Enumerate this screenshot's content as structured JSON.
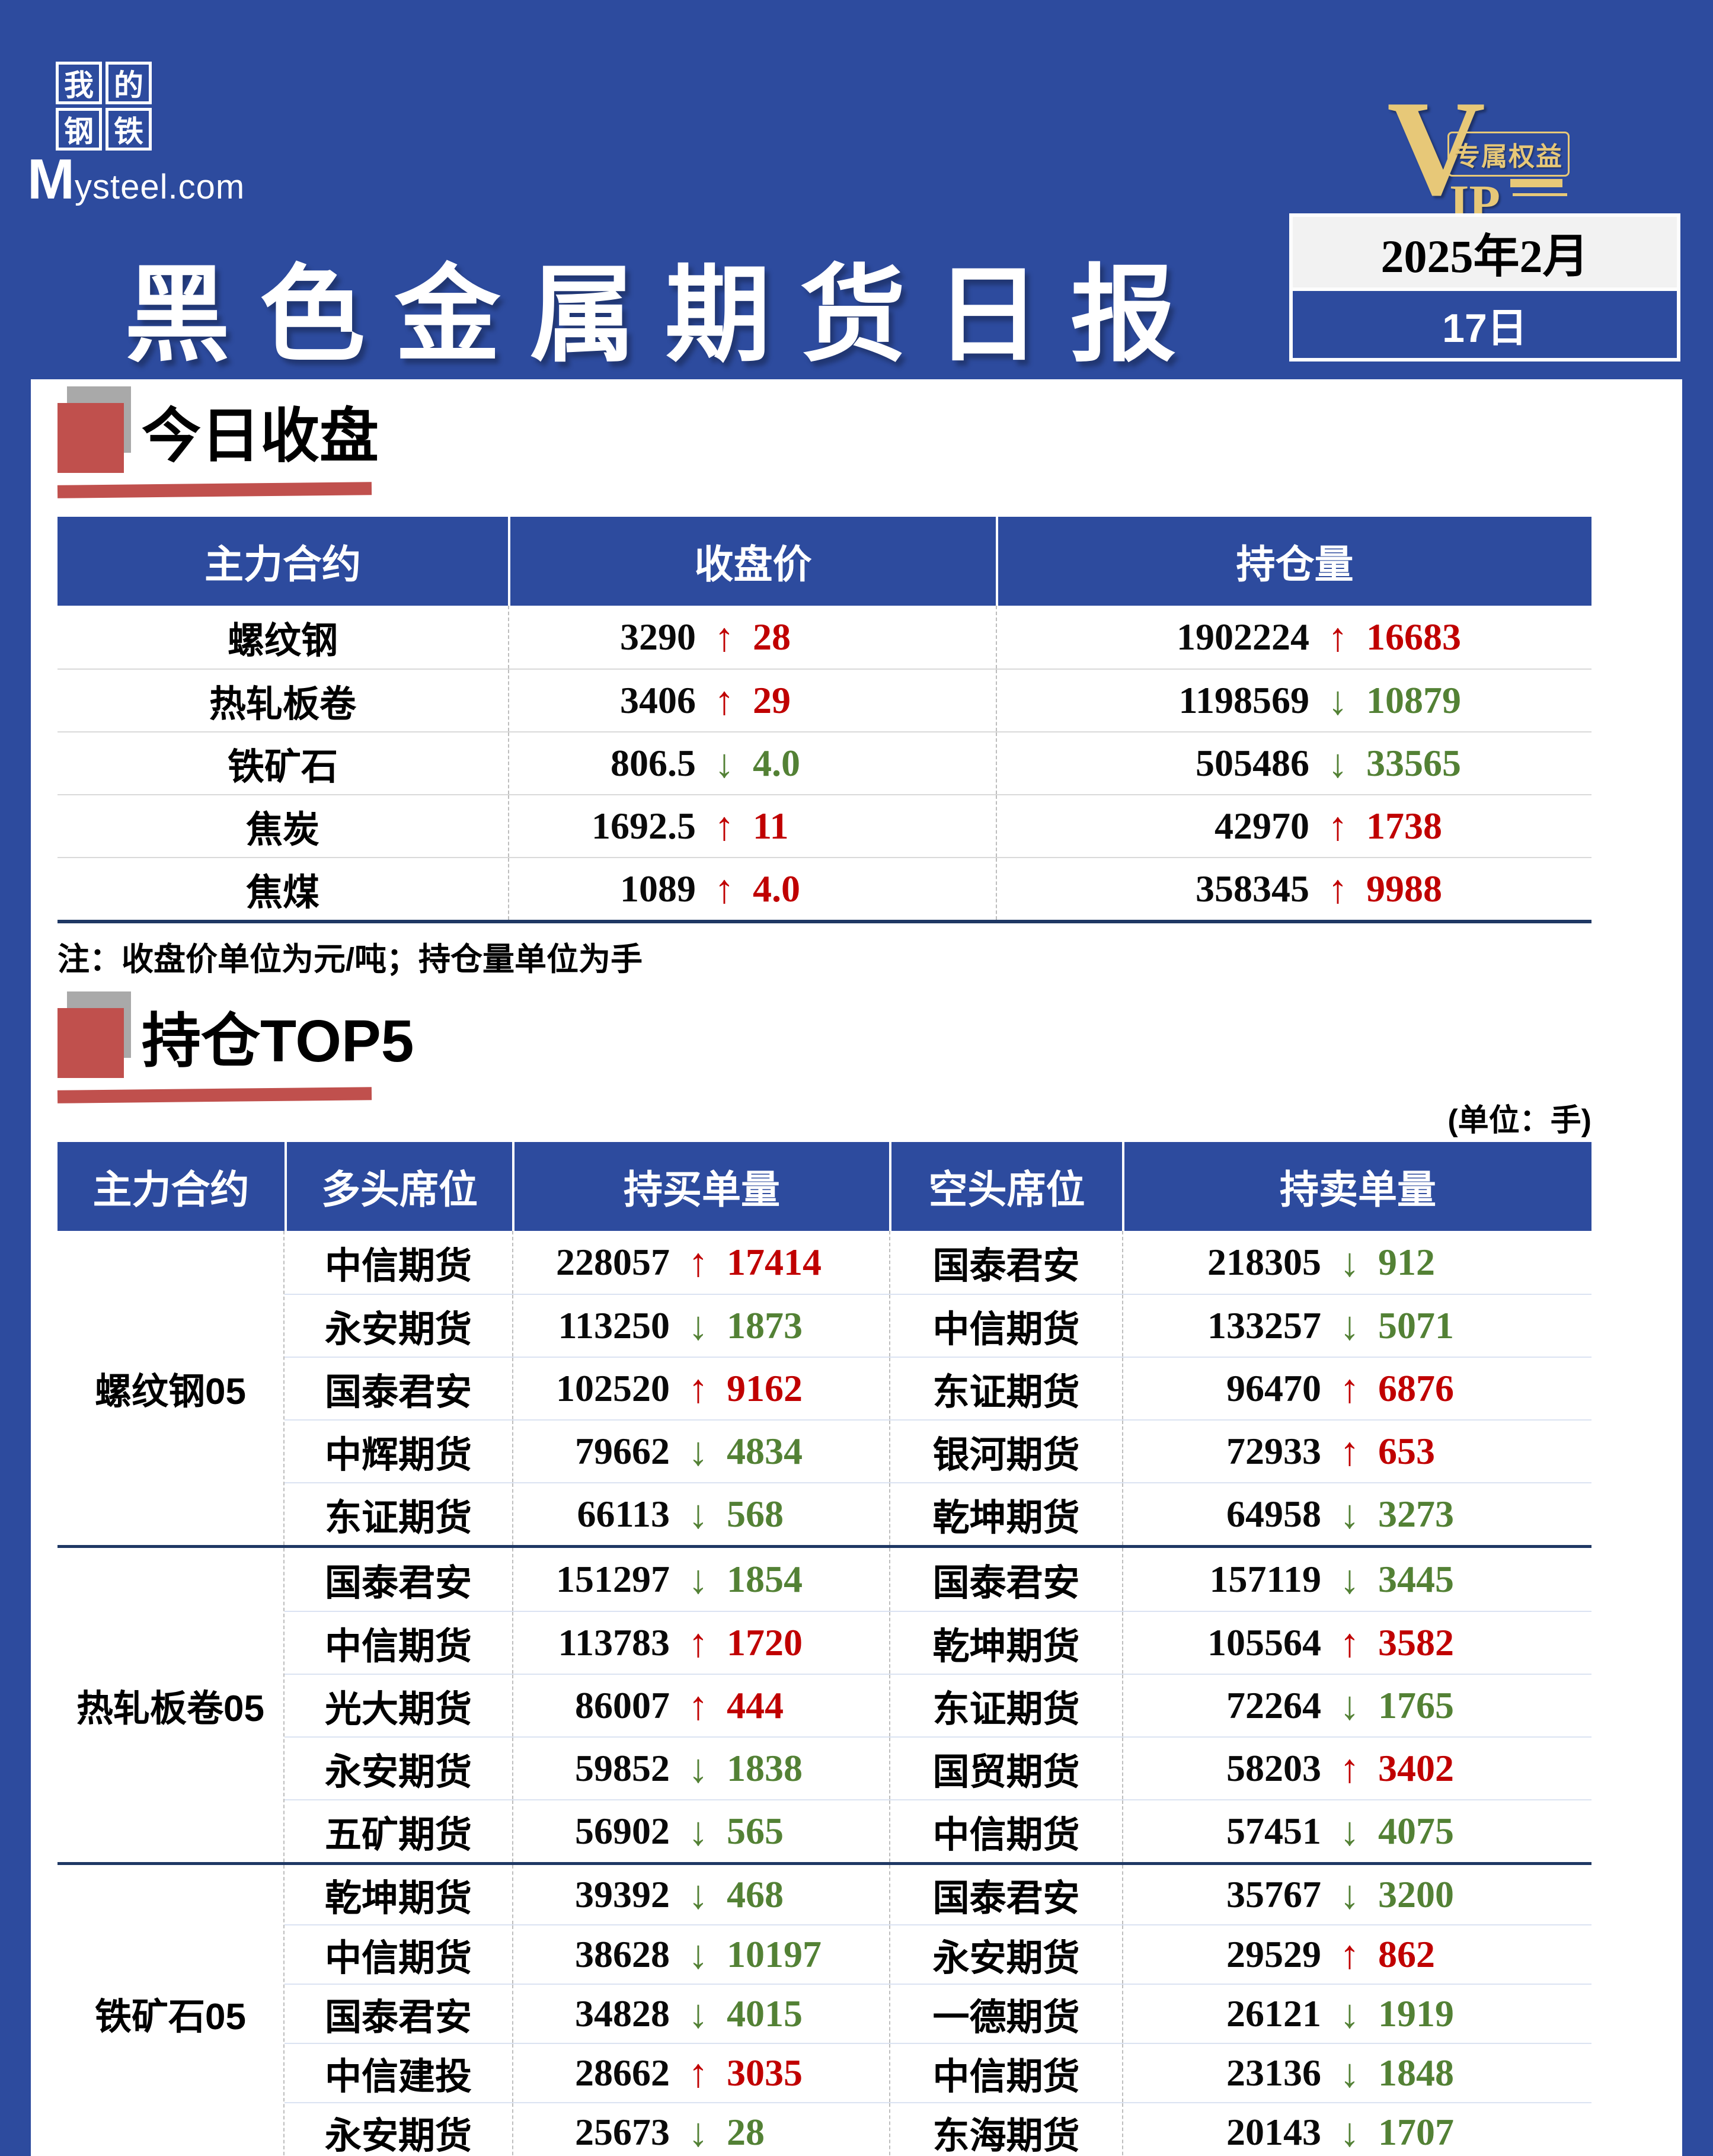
{
  "header": {
    "logo": {
      "chars": [
        "我",
        "的",
        "钢",
        "铁"
      ],
      "wordmark_m": "M",
      "wordmark_rest": "ysteel.com"
    },
    "title": "黑色金属期货日报",
    "vip": {
      "v": "V",
      "ip": "IP",
      "badge": "专属权益"
    },
    "date": {
      "line1": "2025年2月",
      "line2": "17日"
    }
  },
  "icons": {
    "up": "↑",
    "down": "↓"
  },
  "colors": {
    "page_blue": "#2d4b9e",
    "accent_red": "#c0504d",
    "navy_rule": "#1f3864",
    "up_red": "#c00000",
    "down_green": "#538135",
    "gold": "#e7c878"
  },
  "section_close": {
    "title": "今日收盘",
    "unit_note": "注：收盘价单位为元/吨；持仓量单位为手",
    "table": {
      "headers": [
        "主力合约",
        "收盘价",
        "持仓量"
      ],
      "rows": [
        {
          "name": "螺纹钢",
          "price": "3290",
          "price_dir": "up",
          "price_chg": "28",
          "oi": "1902224",
          "oi_dir": "up",
          "oi_chg": "16683"
        },
        {
          "name": "热轧板卷",
          "price": "3406",
          "price_dir": "up",
          "price_chg": "29",
          "oi": "1198569",
          "oi_dir": "down",
          "oi_chg": "10879"
        },
        {
          "name": "铁矿石",
          "price": "806.5",
          "price_dir": "down",
          "price_chg": "4.0",
          "oi": "505486",
          "oi_dir": "down",
          "oi_chg": "33565"
        },
        {
          "name": "焦炭",
          "price": "1692.5",
          "price_dir": "up",
          "price_chg": "11",
          "oi": "42970",
          "oi_dir": "up",
          "oi_chg": "1738"
        },
        {
          "name": "焦煤",
          "price": "1089",
          "price_dir": "up",
          "price_chg": "4.0",
          "oi": "358345",
          "oi_dir": "up",
          "oi_chg": "9988"
        }
      ]
    }
  },
  "section_top5": {
    "title": "持仓TOP5",
    "unit_label": "(单位：手)",
    "table": {
      "headers": [
        "主力合约",
        "多头席位",
        "持买单量",
        "空头席位",
        "持卖单量"
      ],
      "groups": [
        {
          "contract": "螺纹钢05",
          "rows": [
            {
              "long": "中信期货",
              "lv": "228057",
              "ld": "up",
              "lc": "17414",
              "short": "国泰君安",
              "sv": "218305",
              "sd": "down",
              "sc": "912"
            },
            {
              "long": "永安期货",
              "lv": "113250",
              "ld": "down",
              "lc": "1873",
              "short": "中信期货",
              "sv": "133257",
              "sd": "down",
              "sc": "5071"
            },
            {
              "long": "国泰君安",
              "lv": "102520",
              "ld": "up",
              "lc": "9162",
              "short": "东证期货",
              "sv": "96470",
              "sd": "up",
              "sc": "6876"
            },
            {
              "long": "中辉期货",
              "lv": "79662",
              "ld": "down",
              "lc": "4834",
              "short": "银河期货",
              "sv": "72933",
              "sd": "up",
              "sc": "653"
            },
            {
              "long": "东证期货",
              "lv": "66113",
              "ld": "down",
              "lc": "568",
              "short": "乾坤期货",
              "sv": "64958",
              "sd": "down",
              "sc": "3273"
            }
          ]
        },
        {
          "contract": "热轧板卷05",
          "rows": [
            {
              "long": "国泰君安",
              "lv": "151297",
              "ld": "down",
              "lc": "1854",
              "short": "国泰君安",
              "sv": "157119",
              "sd": "down",
              "sc": "3445"
            },
            {
              "long": "中信期货",
              "lv": "113783",
              "ld": "up",
              "lc": "1720",
              "short": "乾坤期货",
              "sv": "105564",
              "sd": "up",
              "sc": "3582"
            },
            {
              "long": "光大期货",
              "lv": "86007",
              "ld": "up",
              "lc": "444",
              "short": "东证期货",
              "sv": "72264",
              "sd": "down",
              "sc": "1765"
            },
            {
              "long": "永安期货",
              "lv": "59852",
              "ld": "down",
              "lc": "1838",
              "short": "国贸期货",
              "sv": "58203",
              "sd": "up",
              "sc": "3402"
            },
            {
              "long": "五矿期货",
              "lv": "56902",
              "ld": "down",
              "lc": "565",
              "short": "中信期货",
              "sv": "57451",
              "sd": "down",
              "sc": "4075"
            }
          ]
        },
        {
          "contract": "铁矿石05",
          "rows": [
            {
              "long": "乾坤期货",
              "lv": "39392",
              "ld": "down",
              "lc": "468",
              "short": "国泰君安",
              "sv": "35767",
              "sd": "down",
              "sc": "3200"
            },
            {
              "long": "中信期货",
              "lv": "38628",
              "ld": "down",
              "lc": "10197",
              "short": "永安期货",
              "sv": "29529",
              "sd": "up",
              "sc": "862"
            },
            {
              "long": "国泰君安",
              "lv": "34828",
              "ld": "down",
              "lc": "4015",
              "short": "一德期货",
              "sv": "26121",
              "sd": "down",
              "sc": "1919"
            },
            {
              "long": "中信建投",
              "lv": "28662",
              "ld": "up",
              "lc": "3035",
              "short": "中信期货",
              "sv": "23136",
              "sd": "down",
              "sc": "1848"
            },
            {
              "long": "永安期货",
              "lv": "25673",
              "ld": "down",
              "lc": "28",
              "short": "东海期货",
              "sv": "20143",
              "sd": "down",
              "sc": "1707"
            }
          ]
        }
      ]
    }
  }
}
